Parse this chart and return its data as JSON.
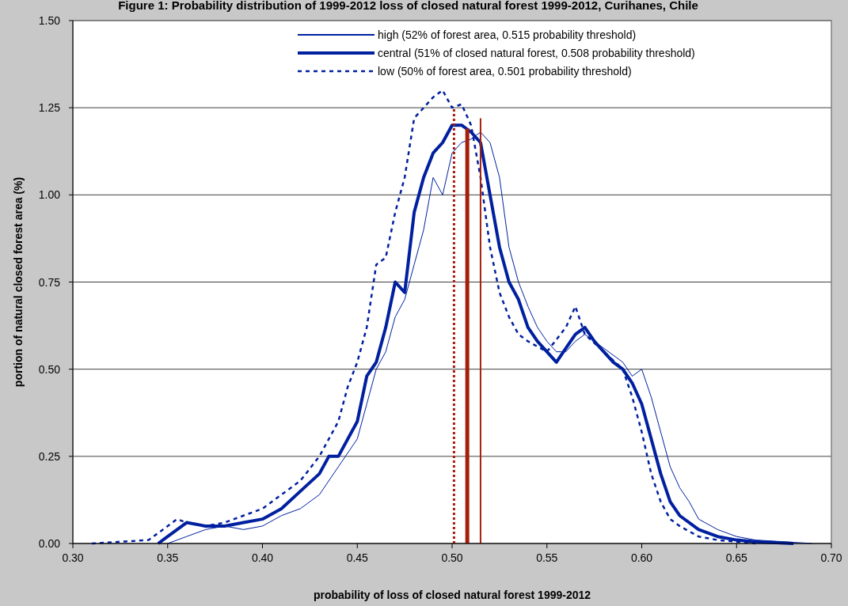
{
  "chart_data": {
    "type": "line",
    "title": "Figure 1: Probability distribution of 1999-2012 loss of closed natural forest 1999-2012, Curihanes, Chile",
    "xlabel": "probability of loss of closed natural forest 1999-2012",
    "ylabel": "portion of natural closed forest area (%)",
    "xlim": [
      0.3,
      0.7
    ],
    "xticks": [
      {
        "value": 0.3,
        "label": "0.30"
      },
      {
        "value": 0.35,
        "label": "0.35"
      },
      {
        "value": 0.4,
        "label": "0.40"
      },
      {
        "value": 0.45,
        "label": "0.45"
      },
      {
        "value": 0.5,
        "label": "0.50"
      },
      {
        "value": 0.55,
        "label": "0.55"
      },
      {
        "value": 0.6,
        "label": "0.60"
      },
      {
        "value": 0.65,
        "label": "0.65"
      },
      {
        "value": 0.7,
        "label": "0.70"
      }
    ],
    "ylim": [
      0,
      1.5
    ],
    "yticks": [
      {
        "value": 0,
        "label": "0.00"
      },
      {
        "value": 0.25,
        "label": "0.25"
      },
      {
        "value": 0.5,
        "label": "0.50"
      },
      {
        "value": 0.75,
        "label": "0.75"
      },
      {
        "value": 1,
        "label": "1.00"
      },
      {
        "value": 1.25,
        "label": "1.25"
      },
      {
        "value": 1.5,
        "label": "1.50"
      }
    ],
    "grid": "y",
    "legend": "top",
    "marker": "none",
    "series": [
      {
        "name": "high (52% of forest area, 0.515 probability threshold)",
        "color": "#00209f",
        "line_style": "solid",
        "x": [
          0.35,
          0.36,
          0.37,
          0.38,
          0.39,
          0.4,
          0.41,
          0.42,
          0.43,
          0.44,
          0.45,
          0.455,
          0.46,
          0.465,
          0.47,
          0.475,
          0.48,
          0.485,
          0.49,
          0.495,
          0.5,
          0.505,
          0.51,
          0.515,
          0.52,
          0.525,
          0.53,
          0.535,
          0.54,
          0.545,
          0.55,
          0.555,
          0.56,
          0.565,
          0.57,
          0.575,
          0.58,
          0.59,
          0.595,
          0.6,
          0.605,
          0.61,
          0.615,
          0.62,
          0.625,
          0.63,
          0.64,
          0.65,
          0.66,
          0.69
        ],
        "values": [
          0,
          0.02,
          0.04,
          0.05,
          0.04,
          0.05,
          0.08,
          0.1,
          0.14,
          0.22,
          0.3,
          0.4,
          0.5,
          0.55,
          0.65,
          0.7,
          0.8,
          0.9,
          1.05,
          1,
          1.12,
          1.15,
          1.16,
          1.18,
          1.15,
          1.05,
          0.85,
          0.75,
          0.68,
          0.62,
          0.58,
          0.55,
          0.55,
          0.58,
          0.6,
          0.58,
          0.56,
          0.52,
          0.48,
          0.5,
          0.42,
          0.32,
          0.22,
          0.16,
          0.12,
          0.07,
          0.04,
          0.02,
          0.01,
          0
        ]
      },
      {
        "name": "central (51% of closed natural forest, 0.508 probability threshold)",
        "color": "#00209f",
        "line_style": "solid",
        "x": [
          0.345,
          0.35,
          0.36,
          0.37,
          0.38,
          0.39,
          0.4,
          0.41,
          0.42,
          0.43,
          0.435,
          0.44,
          0.45,
          0.455,
          0.46,
          0.465,
          0.47,
          0.475,
          0.48,
          0.485,
          0.49,
          0.495,
          0.5,
          0.505,
          0.51,
          0.515,
          0.52,
          0.525,
          0.53,
          0.535,
          0.54,
          0.545,
          0.55,
          0.555,
          0.56,
          0.565,
          0.57,
          0.575,
          0.58,
          0.585,
          0.59,
          0.595,
          0.6,
          0.605,
          0.61,
          0.615,
          0.62,
          0.63,
          0.64,
          0.65,
          0.66,
          0.68
        ],
        "values": [
          0,
          0.02,
          0.06,
          0.05,
          0.05,
          0.06,
          0.07,
          0.1,
          0.15,
          0.2,
          0.25,
          0.25,
          0.35,
          0.48,
          0.52,
          0.62,
          0.75,
          0.72,
          0.95,
          1.05,
          1.12,
          1.15,
          1.2,
          1.2,
          1.18,
          1.15,
          1,
          0.85,
          0.75,
          0.7,
          0.62,
          0.58,
          0.55,
          0.52,
          0.56,
          0.6,
          0.62,
          0.58,
          0.55,
          0.52,
          0.5,
          0.46,
          0.4,
          0.3,
          0.2,
          0.12,
          0.08,
          0.04,
          0.02,
          0.01,
          0.005,
          0
        ]
      },
      {
        "name": "low (50% of forest area, 0.501 probability threshold)",
        "color": "#00209f",
        "line_style": "dashed",
        "x": [
          0.31,
          0.34,
          0.35,
          0.355,
          0.36,
          0.37,
          0.38,
          0.39,
          0.4,
          0.41,
          0.42,
          0.43,
          0.44,
          0.445,
          0.45,
          0.455,
          0.46,
          0.465,
          0.47,
          0.475,
          0.48,
          0.485,
          0.49,
          0.495,
          0.5,
          0.505,
          0.51,
          0.515,
          0.52,
          0.525,
          0.53,
          0.535,
          0.54,
          0.55,
          0.56,
          0.565,
          0.57,
          0.58,
          0.59,
          0.595,
          0.6,
          0.605,
          0.61,
          0.615,
          0.62,
          0.63,
          0.64,
          0.66
        ],
        "values": [
          0,
          0.01,
          0.05,
          0.07,
          0.06,
          0.05,
          0.06,
          0.08,
          0.1,
          0.14,
          0.18,
          0.25,
          0.35,
          0.45,
          0.52,
          0.62,
          0.8,
          0.82,
          0.95,
          1.05,
          1.22,
          1.25,
          1.28,
          1.3,
          1.25,
          1.26,
          1.2,
          1.05,
          0.85,
          0.72,
          0.65,
          0.6,
          0.58,
          0.55,
          0.62,
          0.68,
          0.6,
          0.55,
          0.5,
          0.42,
          0.32,
          0.2,
          0.12,
          0.07,
          0.05,
          0.02,
          0.01,
          0
        ]
      },
      {
        "color": "#a51e0a",
        "line_style": "dotted",
        "x": [
          0.501,
          0.501
        ],
        "values": [
          0,
          1.25
        ]
      },
      {
        "color": "#a51e0a",
        "line_style": "solid",
        "x": [
          0.508,
          0.508
        ],
        "values": [
          0,
          1.19
        ]
      },
      {
        "color": "#a51e0a",
        "line_style": "solid",
        "x": [
          0.515,
          0.515
        ],
        "values": [
          0,
          1.22
        ]
      }
    ]
  }
}
